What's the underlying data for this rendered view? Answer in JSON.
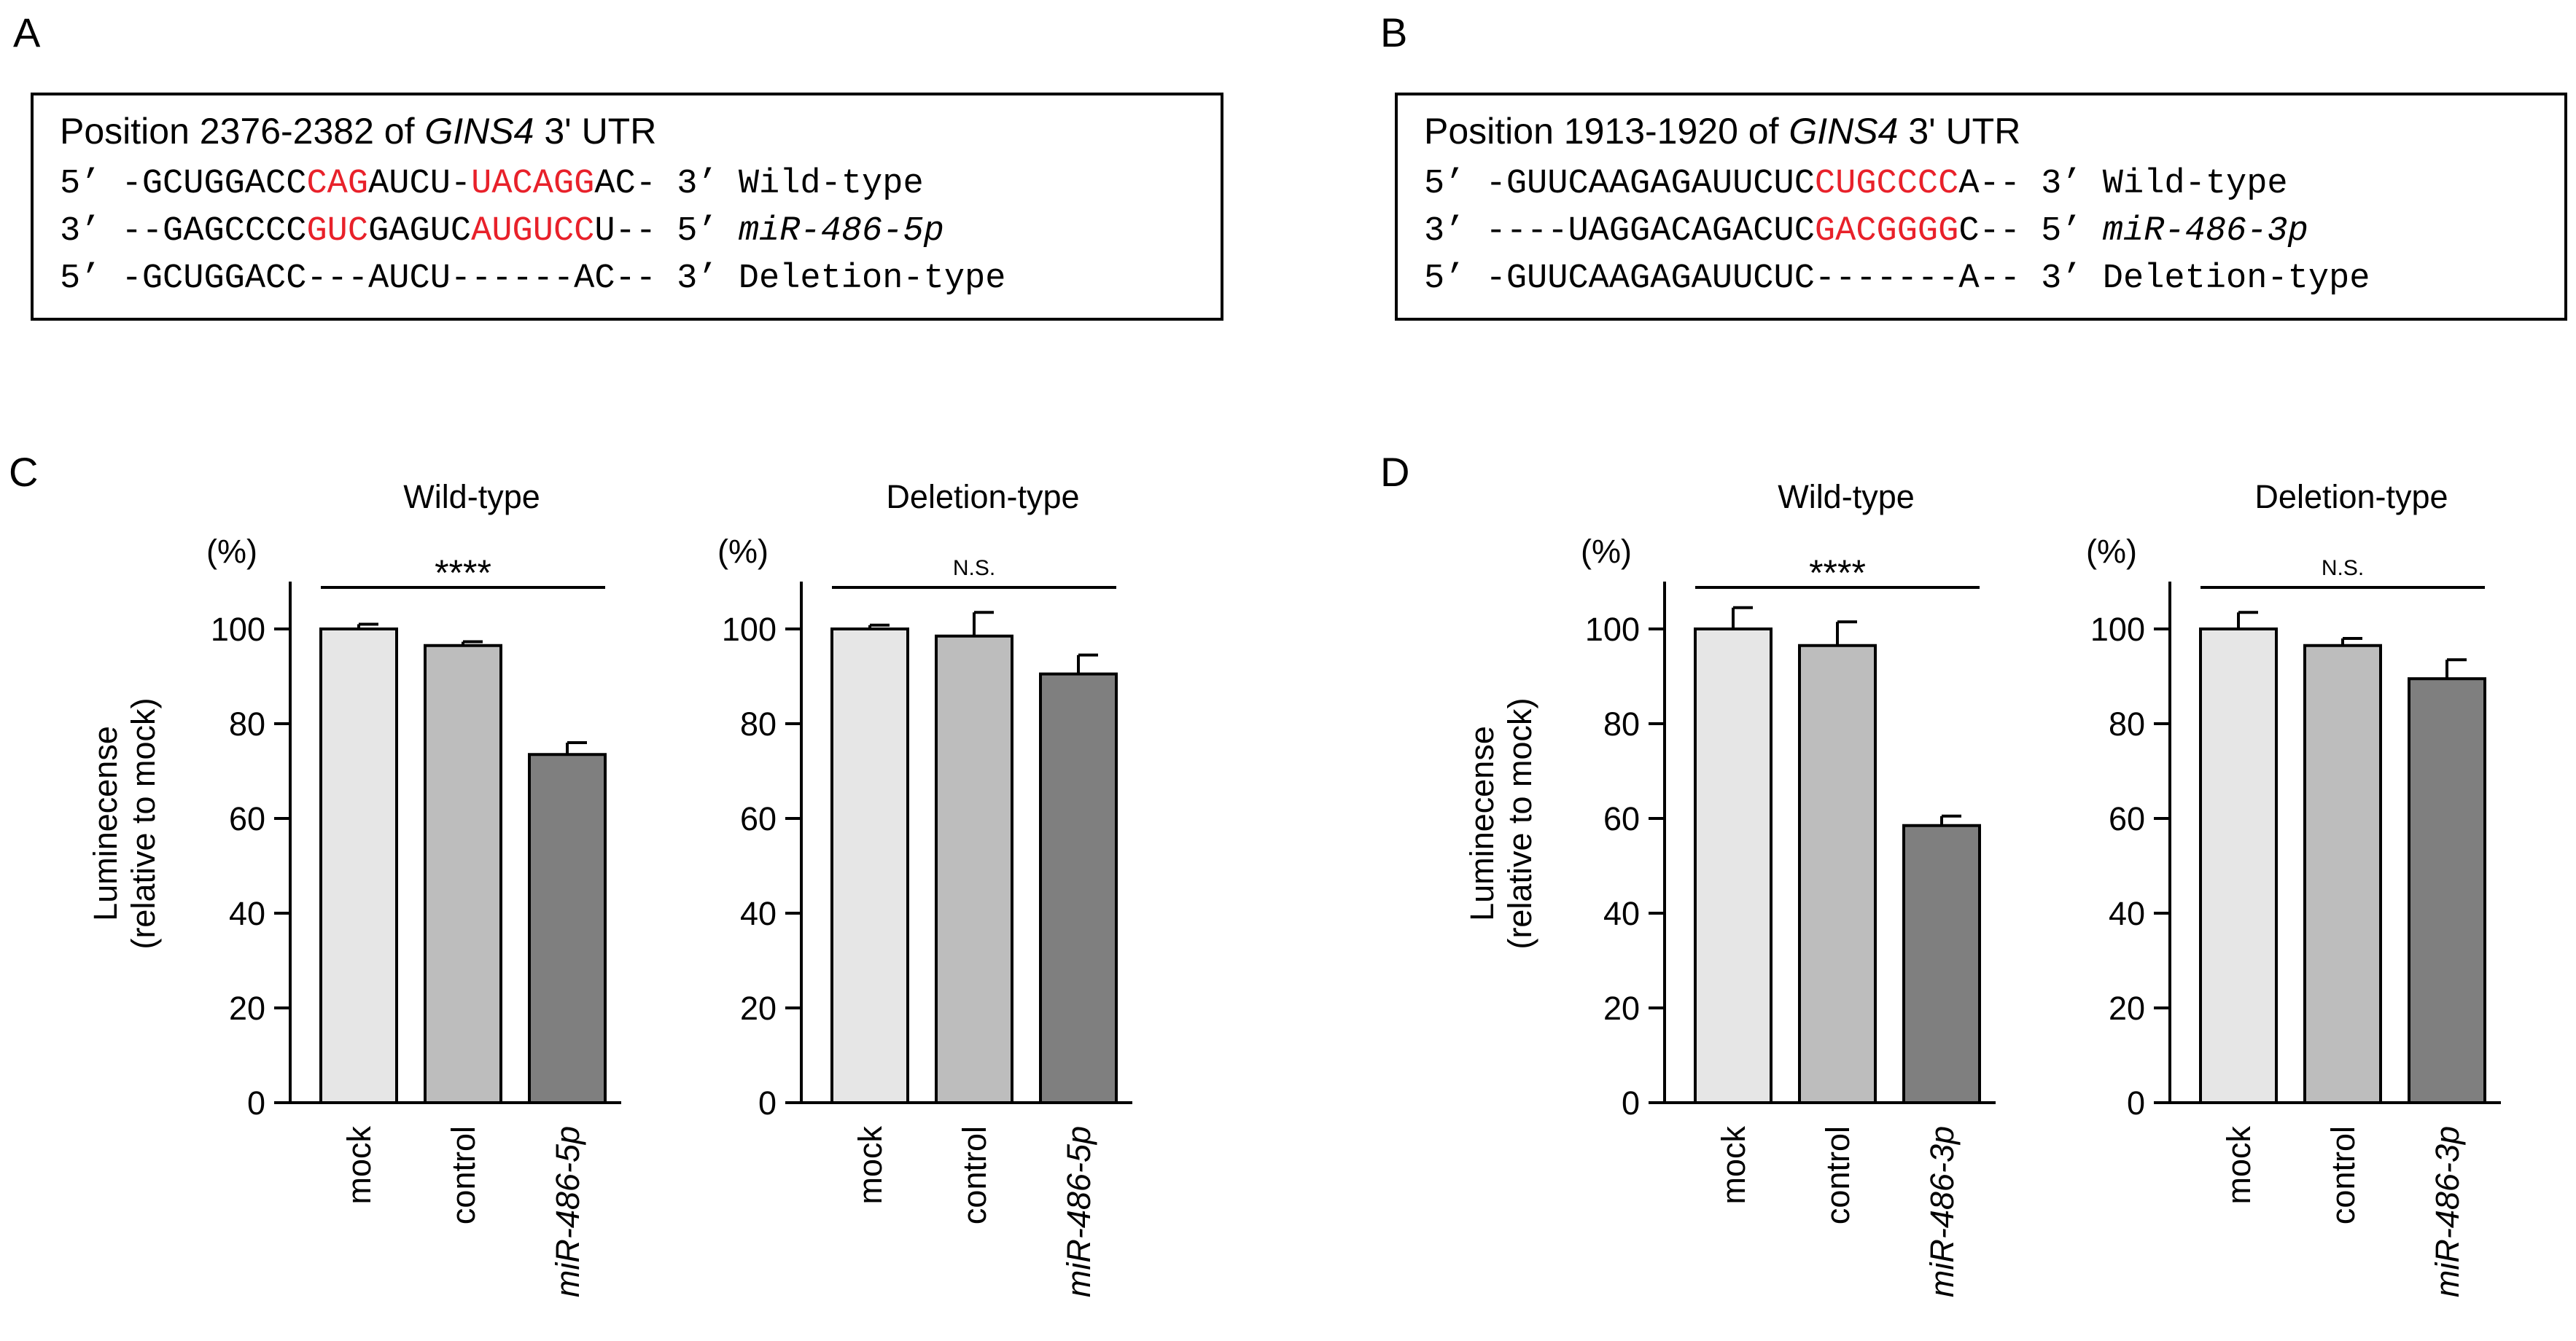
{
  "panels": {
    "A": {
      "letter": "A",
      "title_prefix": "Position 2376-2382 of ",
      "title_gene": "GINS4",
      "title_suffix": " 3' UTR",
      "rows": [
        {
          "end5": "5’",
          "segs": [
            {
              "t": " -GCUGGACC",
              "red": false
            },
            {
              "t": "CAG",
              "red": true
            },
            {
              "t": "AUCU-",
              "red": false
            },
            {
              "t": "UACAGG",
              "red": true
            },
            {
              "t": "AC-",
              "red": false
            }
          ],
          "end3": " 3’",
          "label": "Wild-type",
          "label_italic": false
        },
        {
          "end5": "3’",
          "segs": [
            {
              "t": " --GAGCCCC",
              "red": false
            },
            {
              "t": "GUC",
              "red": true
            },
            {
              "t": "GAGUC",
              "red": false
            },
            {
              "t": "AUGUCC",
              "red": true
            },
            {
              "t": "U--",
              "red": false
            }
          ],
          "end3": " 5’",
          "label": "miR-486-5p",
          "label_italic": true
        },
        {
          "end5": "5’",
          "segs": [
            {
              "t": " -GCUGGACC---AUCU------AC--",
              "red": false
            }
          ],
          "end3": " 3’",
          "label": "Deletion-type",
          "label_italic": false
        }
      ]
    },
    "B": {
      "letter": "B",
      "title_prefix": "Position 1913-1920 of ",
      "title_gene": "GINS4",
      "title_suffix": " 3' UTR",
      "rows": [
        {
          "end5": "5’",
          "segs": [
            {
              "t": " -GUUCAAGAGAUUCUC",
              "red": false
            },
            {
              "t": "CUGCCCC",
              "red": true
            },
            {
              "t": "A--",
              "red": false
            }
          ],
          "end3": " 3’",
          "label": "Wild-type",
          "label_italic": false
        },
        {
          "end5": "3’",
          "segs": [
            {
              "t": " ----UAGGACAGACUC",
              "red": false
            },
            {
              "t": "GACGGGG",
              "red": true
            },
            {
              "t": "C--",
              "red": false
            }
          ],
          "end3": " 5’",
          "label": "miR-486-3p",
          "label_italic": true
        },
        {
          "end5": "5’",
          "segs": [
            {
              "t": " -GUUCAAGAGAUUCUC-------A--",
              "red": false
            }
          ],
          "end3": " 3’",
          "label": "Deletion-type",
          "label_italic": false
        }
      ]
    },
    "C": {
      "letter": "C"
    },
    "D": {
      "letter": "D"
    }
  },
  "colors": {
    "mock": "#e6e6e6",
    "control": "#bdbdbd",
    "mir": "#7f7f7f",
    "highlight": "#e8212a"
  },
  "chart_data": [
    {
      "id": "C1",
      "type": "bar",
      "title": "Wild-type",
      "ylabel": "Luminecense (relative to mock)",
      "ylabel_line1": "Luminecense",
      "ylabel_line2": "(relative to mock)",
      "unit": "(%)",
      "ylim": [
        0,
        110
      ],
      "yticks": [
        0,
        20,
        40,
        60,
        80,
        100
      ],
      "categories": [
        "mock",
        "control",
        "miR-486-5p"
      ],
      "italic_categories": [
        false,
        false,
        true
      ],
      "values": [
        100,
        96.5,
        73.5
      ],
      "errors": [
        1,
        0.8,
        2.5
      ],
      "significance": "****"
    },
    {
      "id": "C2",
      "type": "bar",
      "title": "Deletion-type",
      "unit": "(%)",
      "ylim": [
        0,
        110
      ],
      "yticks": [
        0,
        20,
        40,
        60,
        80,
        100
      ],
      "categories": [
        "mock",
        "control",
        "miR-486-5p"
      ],
      "italic_categories": [
        false,
        false,
        true
      ],
      "values": [
        100,
        98.5,
        90.5
      ],
      "errors": [
        0.8,
        5,
        4
      ],
      "significance": "N.S."
    },
    {
      "id": "D1",
      "type": "bar",
      "title": "Wild-type",
      "ylabel": "Luminecense (relative to mock)",
      "ylabel_line1": "Luminecense",
      "ylabel_line2": "(relative to mock)",
      "unit": "(%)",
      "ylim": [
        0,
        110
      ],
      "yticks": [
        0,
        20,
        40,
        60,
        80,
        100
      ],
      "categories": [
        "mock",
        "control",
        "miR-486-3p"
      ],
      "italic_categories": [
        false,
        false,
        true
      ],
      "values": [
        100,
        96.5,
        58.5
      ],
      "errors": [
        4.5,
        5,
        2
      ],
      "significance": "****"
    },
    {
      "id": "D2",
      "type": "bar",
      "title": "Deletion-type",
      "unit": "(%)",
      "ylim": [
        0,
        110
      ],
      "yticks": [
        0,
        20,
        40,
        60,
        80,
        100
      ],
      "categories": [
        "mock",
        "control",
        "miR-486-3p"
      ],
      "italic_categories": [
        false,
        false,
        true
      ],
      "values": [
        100,
        96.5,
        89.5
      ],
      "errors": [
        3.5,
        1.5,
        4
      ],
      "significance": "N.S."
    }
  ]
}
